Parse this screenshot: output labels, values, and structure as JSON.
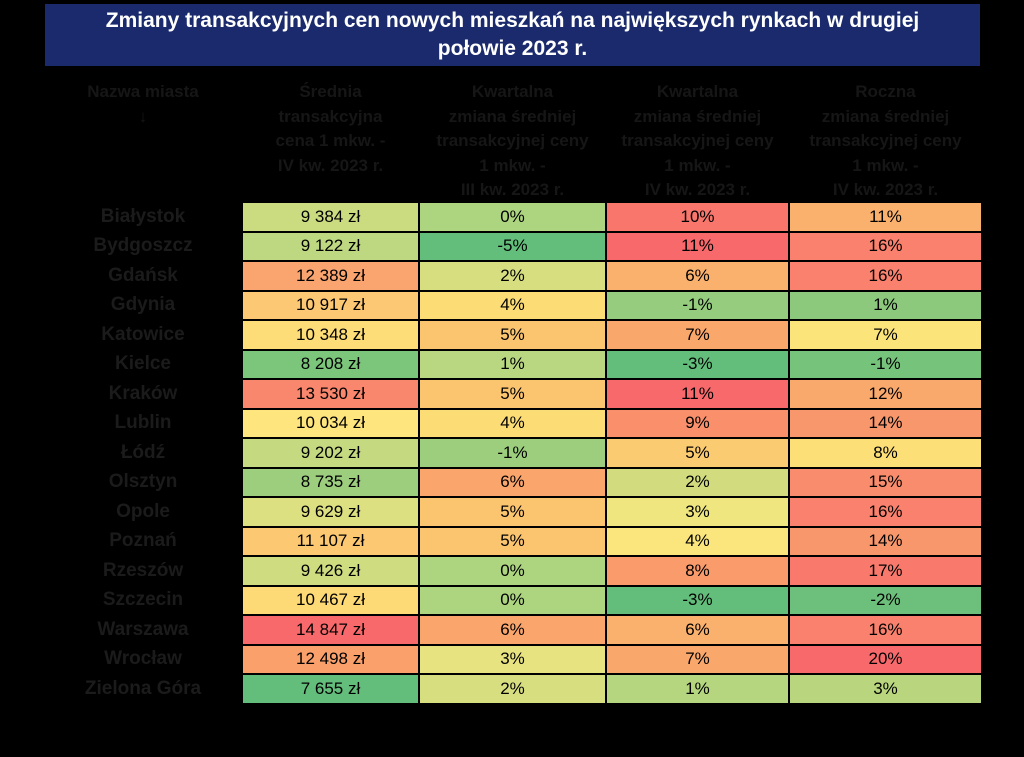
{
  "chart_data": {
    "type": "table",
    "title": "Zmiany transakcyjnych cen nowych mieszkań na największych rynkach w drugiej połowie 2023 r.",
    "columns": [
      "Nazwa miasta",
      "Średnia transakcyjna cena 1 mkw. - IV kw. 2023 r.",
      "Kwartalna zmiana średniej transakcyjnej ceny 1 mkw. - III kw. 2023 r.",
      "Kwartalna zmiana średniej transakcyjnej ceny 1 mkw. - IV kw. 2023 r.",
      "Roczna zmiana średniej transakcyjnej ceny 1 mkw. - IV kw. 2023 r."
    ],
    "rows": [
      [
        "Białystok",
        "9 384 zł",
        "0%",
        "10%",
        "11%"
      ],
      [
        "Bydgoszcz",
        "9 122 zł",
        "-5%",
        "11%",
        "16%"
      ],
      [
        "Gdańsk",
        "12 389 zł",
        "2%",
        "6%",
        "16%"
      ],
      [
        "Gdynia",
        "10 917 zł",
        "4%",
        "-1%",
        "1%"
      ],
      [
        "Katowice",
        "10 348 zł",
        "5%",
        "7%",
        "7%"
      ],
      [
        "Kielce",
        "8 208 zł",
        "1%",
        "-3%",
        "-1%"
      ],
      [
        "Kraków",
        "13 530 zł",
        "5%",
        "11%",
        "12%"
      ],
      [
        "Lublin",
        "10 034 zł",
        "4%",
        "9%",
        "14%"
      ],
      [
        "Łódź",
        "9 202 zł",
        "-1%",
        "5%",
        "8%"
      ],
      [
        "Olsztyn",
        "8 735 zł",
        "6%",
        "2%",
        "15%"
      ],
      [
        "Opole",
        "9 629 zł",
        "5%",
        "3%",
        "16%"
      ],
      [
        "Poznań",
        "11 107 zł",
        "5%",
        "4%",
        "14%"
      ],
      [
        "Rzeszów",
        "9 426 zł",
        "0%",
        "8%",
        "17%"
      ],
      [
        "Szczecin",
        "10 467 zł",
        "0%",
        "-3%",
        "-2%"
      ],
      [
        "Warszawa",
        "14 847 zł",
        "6%",
        "6%",
        "16%"
      ],
      [
        "Wrocław",
        "12 498 zł",
        "3%",
        "7%",
        "20%"
      ],
      [
        "Zielona Góra",
        "7 655 zł",
        "2%",
        "1%",
        "3%"
      ]
    ],
    "color_scale": {
      "low": "#63BE7B",
      "mid": "#FFEB84",
      "high": "#F8696B"
    }
  },
  "presentation": {
    "header_labels": [
      "Nazwa miasta\n↓",
      "Średnia\ntransakcyjna\ncena 1 mkw. -\nIV kw. 2023 r.",
      "Kwartalna\nzmiana średniej\ntransakcyjnej ceny\n1 mkw. -\nIII kw. 2023 r.",
      "Kwartalna\nzmiana średniej\ntransakcyjnej ceny\n1 mkw. -\nIV kw. 2023 r.",
      "Roczna\nzmiana średniej\ntransakcyjnej ceny\n1 mkw. -\nIV kw. 2023 r."
    ],
    "cell_colors": [
      [
        "#CBDB80",
        "#ADD47F",
        "#F8766C",
        "#FBB16E"
      ],
      [
        "#BDD880",
        "#63BE7B",
        "#F8696B",
        "#F9816D"
      ],
      [
        "#FAA56F",
        "#D7DE80",
        "#FAB16D",
        "#F9816D"
      ],
      [
        "#FCC873",
        "#FBDC75",
        "#95CC7E",
        "#8CC97D"
      ],
      [
        "#FDDD77",
        "#FBC46F",
        "#FAA76C",
        "#FBE479"
      ],
      [
        "#7CC67C",
        "#B9D680",
        "#63BE7B",
        "#76C37C"
      ],
      [
        "#F9876D",
        "#FBC46F",
        "#F8696B",
        "#FAA96D"
      ],
      [
        "#FEE57E",
        "#FBDC75",
        "#F9906B",
        "#F9976C"
      ],
      [
        "#C5DA80",
        "#9CCE7E",
        "#FBCB71",
        "#FCDF77"
      ],
      [
        "#9CCE7E",
        "#F9A56C",
        "#D2DC7F",
        "#F98C6D"
      ],
      [
        "#DCE081",
        "#FBC46F",
        "#EFE680",
        "#F9816D"
      ],
      [
        "#FCC871",
        "#FBC46F",
        "#FAE67C",
        "#F9976C"
      ],
      [
        "#CFDC80",
        "#ADD47F",
        "#F99B6B",
        "#F97A6C"
      ],
      [
        "#FDDA76",
        "#ADD47F",
        "#63BE7B",
        "#6DC07B"
      ],
      [
        "#F8696B",
        "#F9A56C",
        "#FAB16D",
        "#F9816D"
      ],
      [
        "#FAA06B",
        "#E7E381",
        "#FAA76C",
        "#F8696B"
      ],
      [
        "#63BE7B",
        "#D7DE80",
        "#B5D57F",
        "#B9D67F"
      ]
    ],
    "colors": {
      "page_bg": "#000000",
      "title_bg": "#1a2a6c",
      "title_text": "#ffffff",
      "header_text": "#161616",
      "city_text": "#1b1b1b",
      "cell_text": "#000000"
    }
  }
}
